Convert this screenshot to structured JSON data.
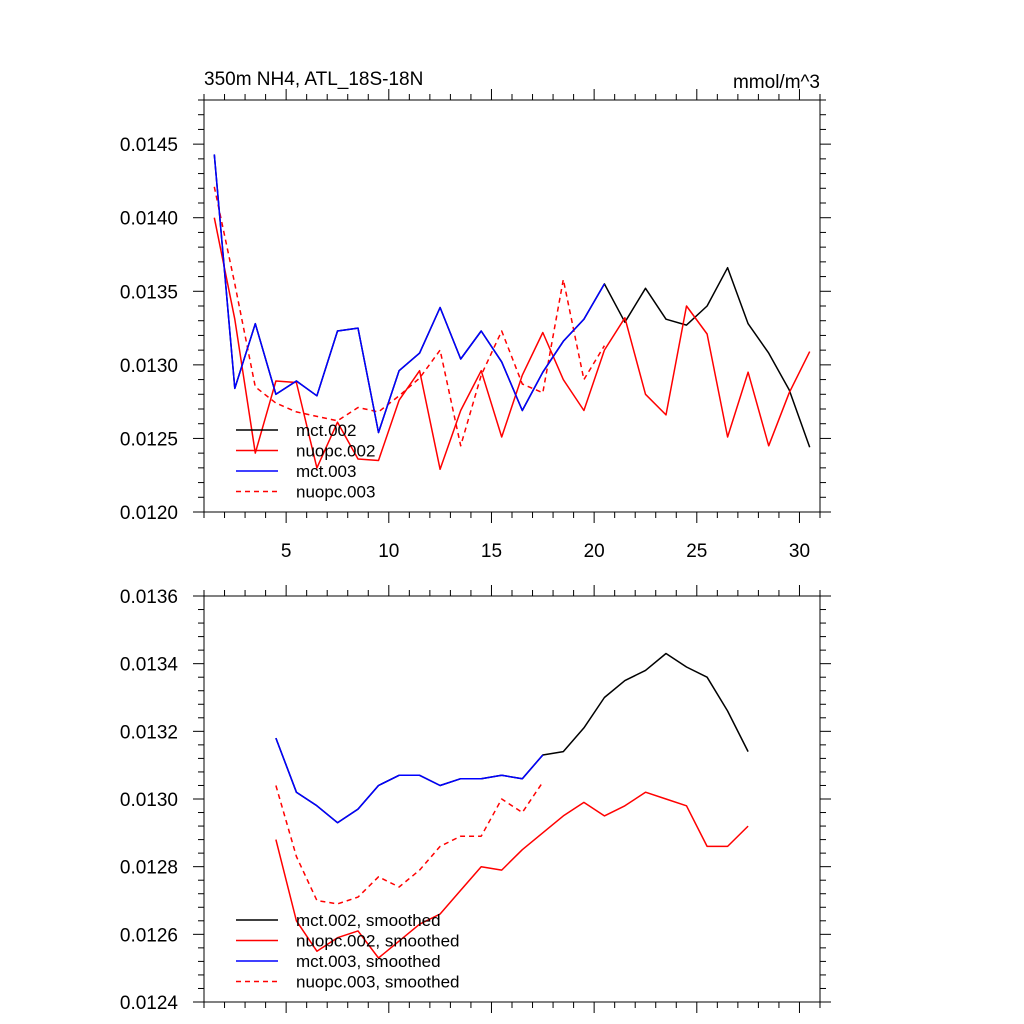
{
  "chart_data": [
    {
      "type": "line",
      "title": "350m NH4, ATL_18S-18N",
      "units": "mmol/m^3",
      "xlim": [
        1,
        31
      ],
      "ylim": [
        0.012,
        0.0148
      ],
      "x_major_ticks": [
        5,
        10,
        15,
        20,
        25,
        30
      ],
      "x_tick_labels": [
        "5",
        "10",
        "15",
        "20",
        "25",
        "30"
      ],
      "y_major_ticks": [
        0.012,
        0.0125,
        0.013,
        0.0135,
        0.014,
        0.0145
      ],
      "y_tick_labels": [
        "0.0120",
        "0.0125",
        "0.0130",
        "0.0135",
        "0.0140",
        "0.0145"
      ],
      "legend_position": "bottom-left",
      "series": [
        {
          "name": "mct.002",
          "color": "#000000",
          "dash": "solid",
          "x": [
            1.5,
            2.5,
            3.5,
            4.5,
            5.5,
            6.5,
            7.5,
            8.5,
            9.5,
            10.5,
            11.5,
            12.5,
            13.5,
            14.5,
            15.5,
            16.5,
            17.5,
            18.5,
            19.5,
            20.5,
            21.5,
            22.5,
            23.5,
            24.5,
            25.5,
            26.5,
            27.5,
            28.5,
            29.5,
            30.5
          ],
          "y": [
            0.01443,
            0.01284,
            0.01328,
            0.0128,
            0.01289,
            0.01279,
            0.01323,
            0.01325,
            0.01254,
            0.01296,
            0.01308,
            0.01339,
            0.01304,
            0.01323,
            0.01302,
            0.01269,
            0.01295,
            0.01316,
            0.01331,
            0.01355,
            0.01329,
            0.01352,
            0.01331,
            0.01327,
            0.0134,
            0.01366,
            0.01328,
            0.01308,
            0.01283,
            0.01244
          ]
        },
        {
          "name": "nuopc.002",
          "color": "#ff0000",
          "dash": "solid",
          "x": [
            1.5,
            2.5,
            3.5,
            4.5,
            5.5,
            6.5,
            7.5,
            8.5,
            9.5,
            10.5,
            11.5,
            12.5,
            13.5,
            14.5,
            15.5,
            16.5,
            17.5,
            18.5,
            19.5,
            20.5,
            21.5,
            22.5,
            23.5,
            24.5,
            25.5,
            26.5,
            27.5,
            28.5,
            29.5,
            30.5
          ],
          "y": [
            0.014,
            0.01331,
            0.0124,
            0.01289,
            0.01288,
            0.0123,
            0.01261,
            0.01236,
            0.01235,
            0.01276,
            0.01296,
            0.01229,
            0.01269,
            0.01296,
            0.01251,
            0.01293,
            0.01322,
            0.0129,
            0.01269,
            0.0131,
            0.01332,
            0.0128,
            0.01266,
            0.0134,
            0.01321,
            0.01251,
            0.01295,
            0.01245,
            0.01281,
            0.01309
          ]
        },
        {
          "name": "mct.003",
          "color": "#0000ff",
          "dash": "solid",
          "x": [
            1.5,
            2.5,
            3.5,
            4.5,
            5.5,
            6.5,
            7.5,
            8.5,
            9.5,
            10.5,
            11.5,
            12.5,
            13.5,
            14.5,
            15.5,
            16.5,
            17.5,
            18.5,
            19.5,
            20.5
          ],
          "y": [
            0.01443,
            0.01284,
            0.01328,
            0.0128,
            0.01289,
            0.01279,
            0.01323,
            0.01325,
            0.01254,
            0.01296,
            0.01308,
            0.01339,
            0.01304,
            0.01323,
            0.01302,
            0.01269,
            0.01295,
            0.01316,
            0.01331,
            0.01355
          ]
        },
        {
          "name": "nuopc.003",
          "color": "#ff0000",
          "dash": "dashed",
          "x": [
            1.5,
            2.5,
            3.5,
            4.5,
            5.5,
            6.5,
            7.5,
            8.5,
            9.5,
            10.5,
            11.5,
            12.5,
            13.5,
            14.5,
            15.5,
            16.5,
            17.5,
            18.5,
            19.5,
            20.5
          ],
          "y": [
            0.01421,
            0.01355,
            0.01285,
            0.01274,
            0.01268,
            0.01265,
            0.01262,
            0.01271,
            0.01268,
            0.01279,
            0.01291,
            0.0131,
            0.01245,
            0.01293,
            0.01323,
            0.01287,
            0.01281,
            0.01358,
            0.0129,
            0.01313
          ]
        }
      ]
    },
    {
      "type": "line",
      "title": "",
      "xlim": [
        1,
        31
      ],
      "ylim": [
        0.0124,
        0.0136
      ],
      "x_major_ticks": [
        5,
        10,
        15,
        20,
        25,
        30
      ],
      "x_tick_labels": [],
      "y_major_ticks": [
        0.0124,
        0.0126,
        0.0128,
        0.013,
        0.0132,
        0.0134,
        0.0136
      ],
      "y_tick_labels": [
        "0.0124",
        "0.0126",
        "0.0128",
        "0.0130",
        "0.0132",
        "0.0134",
        "0.0136"
      ],
      "legend_position": "bottom-left",
      "series": [
        {
          "name": "mct.002, smoothed",
          "color": "#000000",
          "dash": "solid",
          "x": [
            4.5,
            5.5,
            6.5,
            7.5,
            8.5,
            9.5,
            10.5,
            11.5,
            12.5,
            13.5,
            14.5,
            15.5,
            16.5,
            17.5,
            18.5,
            19.5,
            20.5,
            21.5,
            22.5,
            23.5,
            24.5,
            25.5,
            26.5,
            27.5
          ],
          "y": [
            0.01318,
            0.01302,
            0.01298,
            0.01293,
            0.01297,
            0.01304,
            0.01307,
            0.01307,
            0.01304,
            0.01306,
            0.01306,
            0.01307,
            0.01306,
            0.01313,
            0.01314,
            0.01321,
            0.0133,
            0.01335,
            0.01338,
            0.01343,
            0.01339,
            0.01336,
            0.01326,
            0.01314
          ]
        },
        {
          "name": "nuopc.002, smoothed",
          "color": "#ff0000",
          "dash": "solid",
          "x": [
            4.5,
            5.5,
            6.5,
            7.5,
            8.5,
            9.5,
            10.5,
            11.5,
            12.5,
            13.5,
            14.5,
            15.5,
            16.5,
            17.5,
            18.5,
            19.5,
            20.5,
            21.5,
            22.5,
            23.5,
            24.5,
            25.5,
            26.5,
            27.5
          ],
          "y": [
            0.01288,
            0.01264,
            0.01255,
            0.01259,
            0.01261,
            0.01253,
            0.01258,
            0.01263,
            0.01266,
            0.01273,
            0.0128,
            0.01279,
            0.01285,
            0.0129,
            0.01295,
            0.01299,
            0.01295,
            0.01298,
            0.01302,
            0.013,
            0.01298,
            0.01286,
            0.01286,
            0.01292
          ]
        },
        {
          "name": "mct.003, smoothed",
          "color": "#0000ff",
          "dash": "solid",
          "x": [
            4.5,
            5.5,
            6.5,
            7.5,
            8.5,
            9.5,
            10.5,
            11.5,
            12.5,
            13.5,
            14.5,
            15.5,
            16.5,
            17.5
          ],
          "y": [
            0.01318,
            0.01302,
            0.01298,
            0.01293,
            0.01297,
            0.01304,
            0.01307,
            0.01307,
            0.01304,
            0.01306,
            0.01306,
            0.01307,
            0.01306,
            0.01313
          ]
        },
        {
          "name": "nuopc.003, smoothed",
          "color": "#ff0000",
          "dash": "dashed",
          "x": [
            4.5,
            5.5,
            6.5,
            7.5,
            8.5,
            9.5,
            10.5,
            11.5,
            12.5,
            13.5,
            14.5,
            15.5,
            16.5,
            17.5
          ],
          "y": [
            0.01304,
            0.01283,
            0.0127,
            0.01269,
            0.01271,
            0.01277,
            0.01274,
            0.01279,
            0.01286,
            0.01289,
            0.01289,
            0.013,
            0.01296,
            0.01305
          ]
        }
      ]
    }
  ]
}
